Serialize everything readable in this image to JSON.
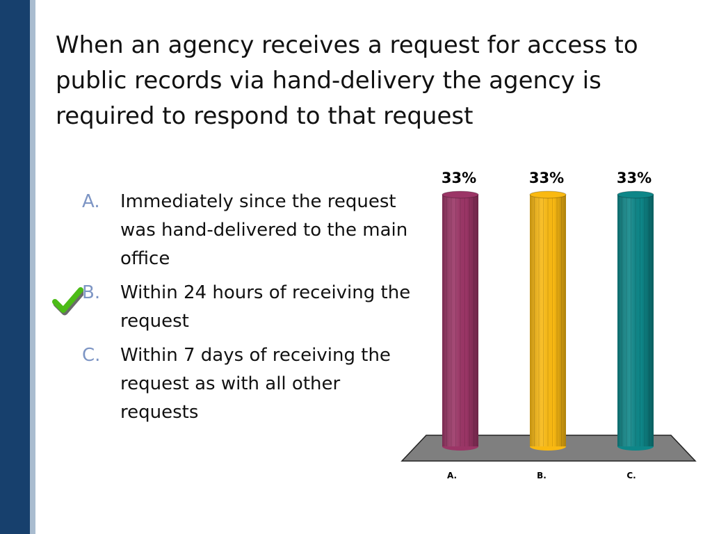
{
  "slide": {
    "title": "When an agency receives a request for access to public records via hand-delivery the agency is required to respond to that request",
    "answers": [
      {
        "letter": "A.",
        "text": "Immediately since the request was hand-delivered to the main office"
      },
      {
        "letter": "B.",
        "text": "Within 24 hours of receiving the request"
      },
      {
        "letter": "C.",
        "text": "Within 7 days of receiving the request as with all other requests"
      }
    ],
    "correct_answer_icon": "check-icon"
  },
  "chart_data": {
    "type": "bar",
    "categories": [
      "A.",
      "B.",
      "C."
    ],
    "values": [
      33,
      33,
      33
    ],
    "value_labels": [
      "33%",
      "33%",
      "33%"
    ],
    "colors": [
      "#9b3566",
      "#f9b912",
      "#0e8688"
    ],
    "ylim": [
      0,
      33
    ],
    "grid": false
  },
  "colors": {
    "sidebar": "#17406d",
    "sidebar_accent": "#a9bccf",
    "letter": "#7d95c4",
    "check": "#4cbb17"
  }
}
